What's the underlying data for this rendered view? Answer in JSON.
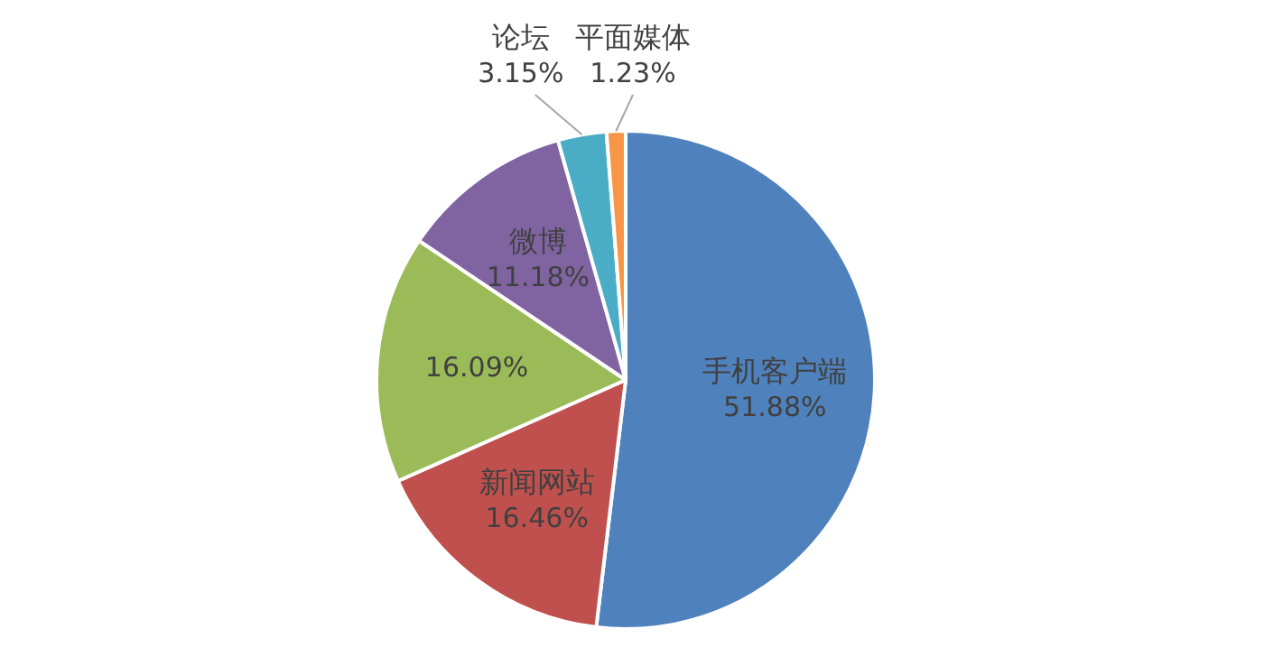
{
  "chart_data": {
    "type": "pie",
    "categories": [
      "手机客户端",
      "新闻网站",
      null,
      "微博",
      "论坛",
      "平面媒体"
    ],
    "values": [
      51.88,
      16.46,
      16.09,
      11.18,
      3.15,
      1.23
    ],
    "colors": [
      "#4f81bd",
      "#c0504d",
      "#9bbb59",
      "#8064a2",
      "#4bacc6",
      "#f79646"
    ],
    "value_labels": [
      "51.88%",
      "16.46%",
      "16.09%",
      "11.18%",
      "3.15%",
      "1.23%"
    ]
  }
}
